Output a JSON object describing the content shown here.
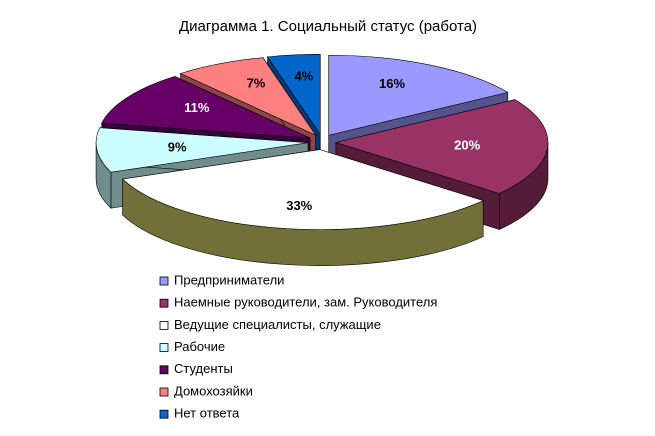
{
  "chart_data": {
    "type": "pie",
    "title": "Диаграмма 1. Социальный статус (работа)",
    "categories": [
      "Предприниматели",
      "Наемные руководители, зам. Руководителя",
      "Ведущие специалисты, служащие",
      "Рабочие",
      "Студенты",
      "Домохозяйки",
      "Нет ответа"
    ],
    "values": [
      16,
      20,
      33,
      9,
      11,
      7,
      4
    ],
    "value_labels": [
      "16%",
      "20%",
      "33%",
      "9%",
      "11%",
      "7%",
      "4%"
    ],
    "colors": [
      "#9999ff",
      "#993366",
      "#ffffff",
      "#ccffff",
      "#660066",
      "#ff8080",
      "#0066cc"
    ],
    "legend": "bottom"
  }
}
